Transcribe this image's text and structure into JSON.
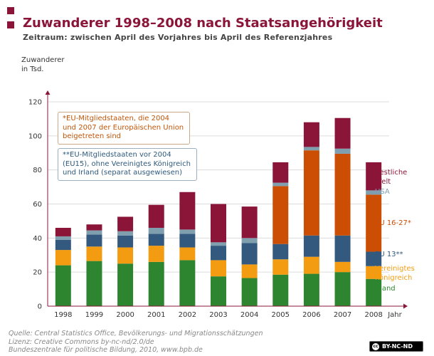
{
  "header": {
    "title": "Zuwanderer 1998–2008 nach Staatsangehörigkeit",
    "subtitle": "Zeitraum: zwischen April des Vorjahres bis April des Referenzjahres"
  },
  "notes": {
    "eu_note": "*EU-Mitgliedstaaten, die 2004 und 2007 der Europäischen Union beigetreten sind",
    "eu15_note": "**EU-Mitgliedstaaten vor 2004 (EU15), ohne Vereinigtes Königreich und Irland (separat ausgewiesen)"
  },
  "footer": {
    "source_line1": "Quelle: Central Statistics Office, Bevölkerungs- und Migrationsschätzungen",
    "source_line2": "Lizenz: Creative Commons by-nc-nd/2.0/de",
    "source_line3": "Bundeszentrale für politische Bildung, 2010, www.bpb.de",
    "license_badge": "BY-NC-ND"
  },
  "colors": {
    "accent": "#8b1538",
    "irland": "#2e8530",
    "uk": "#f39c12",
    "eu13": "#34597f",
    "usa": "#7f9eae",
    "eu27": "#cc4e04",
    "rest": "#8b1538"
  },
  "chart_data": {
    "type": "bar",
    "stacked": true,
    "categories": [
      "1998",
      "1999",
      "2000",
      "2001",
      "2002",
      "2003",
      "2004",
      "2005",
      "2006",
      "2007",
      "2008"
    ],
    "ylabel": "Zuwanderer\nin Tsd.",
    "xlabel": "Jahr",
    "ylim": [
      0,
      120
    ],
    "yticks": [
      0,
      20,
      40,
      60,
      80,
      100,
      120
    ],
    "grid": true,
    "legend_position": "right",
    "series": [
      {
        "key": "irland",
        "name": "Irland",
        "values": [
          24,
          26.5,
          25,
          26,
          27,
          17.5,
          16.5,
          18.5,
          19,
          20,
          16
        ]
      },
      {
        "key": "uk",
        "name": "Vereinigtes Königreich",
        "values": [
          9,
          8.5,
          9.5,
          9.5,
          7.5,
          9.5,
          8,
          9,
          10,
          6,
          7.5
        ]
      },
      {
        "key": "eu13",
        "name": "EU 13**",
        "values": [
          6,
          7,
          7,
          7,
          8,
          8.5,
          12.5,
          9,
          12.5,
          15.5,
          8.5
        ]
      },
      {
        "key": "eu27",
        "name": "EU 16-27*",
        "values": [
          0,
          0,
          0,
          0,
          0,
          0,
          0,
          34,
          50,
          48,
          33.5
        ]
      },
      {
        "key": "usa",
        "name": "USA",
        "values": [
          2,
          2.5,
          2.5,
          3.5,
          2.5,
          2,
          3,
          2,
          2,
          3,
          2.5
        ]
      },
      {
        "key": "rest",
        "name": "Restliche Welt",
        "values": [
          5,
          3.5,
          8.5,
          13.5,
          22,
          22.5,
          18.5,
          12,
          14.5,
          18,
          16.5
        ]
      }
    ]
  }
}
